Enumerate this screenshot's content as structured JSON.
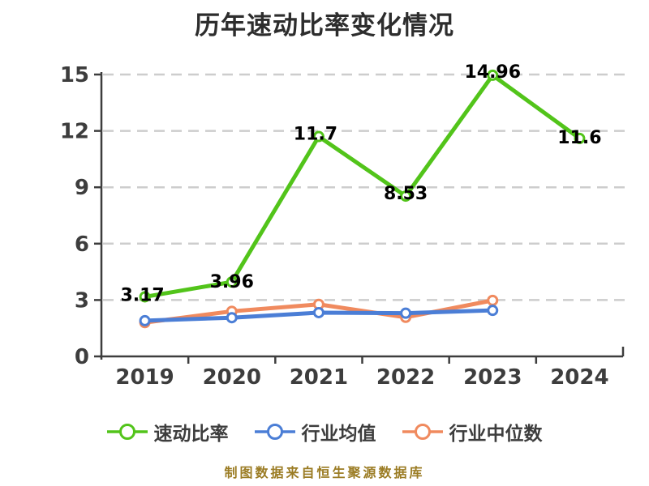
{
  "title": "历年速动比率变化情况",
  "caption": "制图数据来自恒生聚源数据库",
  "colors": {
    "title": "#2d2d2d",
    "axis": "#3d3d3d",
    "tick_label": "#3d3d3d",
    "grid": "#cdcdcd",
    "data_label": "#000000",
    "caption": "#9b7c24",
    "background": "#ffffff",
    "marker_fill": "#ffffff"
  },
  "chart_data": {
    "type": "line",
    "title": "历年速动比率变化情况",
    "categories": [
      "2019",
      "2020",
      "2021",
      "2022",
      "2023",
      "2024"
    ],
    "series": [
      {
        "name": "速动比率",
        "color": "#52c41a",
        "values": [
          3.17,
          3.96,
          11.7,
          8.53,
          14.96,
          11.6
        ],
        "labels": [
          "3.17",
          "3.96",
          "11.7",
          "8.53",
          "14.96",
          "11.6"
        ]
      },
      {
        "name": "行业均值",
        "color": "#4b7ed6",
        "values": [
          1.9,
          2.06,
          2.33,
          2.3,
          2.45,
          null
        ],
        "labels": null
      },
      {
        "name": "行业中位数",
        "color": "#f08a5e",
        "values": [
          1.8,
          2.4,
          2.77,
          2.08,
          2.98,
          null
        ],
        "labels": null
      }
    ],
    "xlabel": "",
    "ylabel": "",
    "ylim": [
      0,
      15
    ],
    "yticks": [
      0,
      3,
      6,
      9,
      12,
      15
    ],
    "grid": "horizontal-dashed",
    "legend_position": "bottom",
    "source_note": "制图数据来自恒生聚源数据库"
  }
}
